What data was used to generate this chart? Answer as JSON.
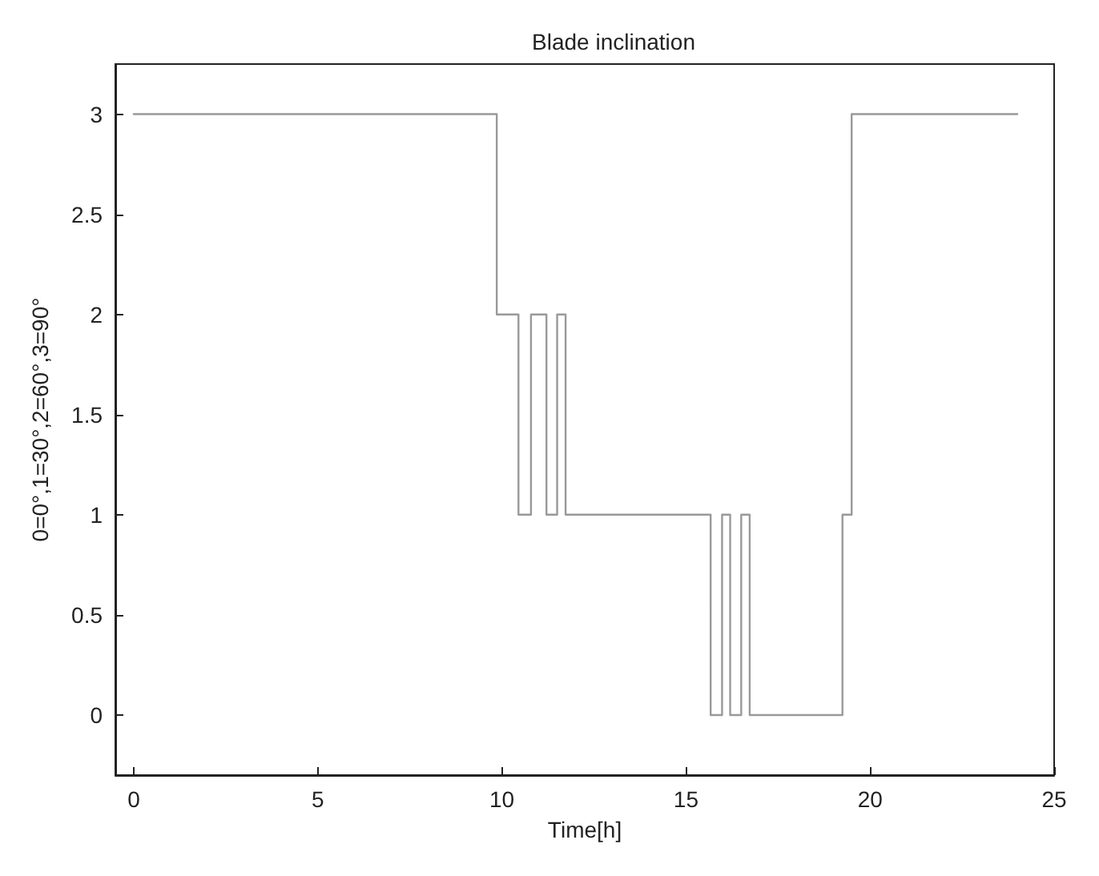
{
  "chart_data": {
    "type": "step",
    "title": "Blade inclination",
    "xlabel": "Time[h]",
    "ylabel": "0=0°,1=30°,2=60°,3=90°",
    "x": [
      0,
      9.86,
      10.45,
      10.79,
      11.21,
      11.5,
      11.73,
      15.67,
      15.98,
      16.2,
      16.5,
      16.73,
      19.25,
      19.5,
      24
    ],
    "series": [
      {
        "color": "#999999",
        "values": [
          3,
          2,
          1,
          2,
          1,
          2,
          1,
          0,
          1,
          0,
          1,
          0,
          1,
          3,
          3
        ]
      }
    ],
    "xlim": [
      -0.5,
      25
    ],
    "xticks": [
      0,
      5,
      10,
      15,
      20,
      25
    ],
    "ylim": [
      -0.3,
      3.25
    ],
    "yticks": [
      0,
      0.5,
      1,
      1.5,
      2,
      2.5,
      3
    ],
    "grid": false,
    "marker": "none",
    "line_style": "solid"
  }
}
